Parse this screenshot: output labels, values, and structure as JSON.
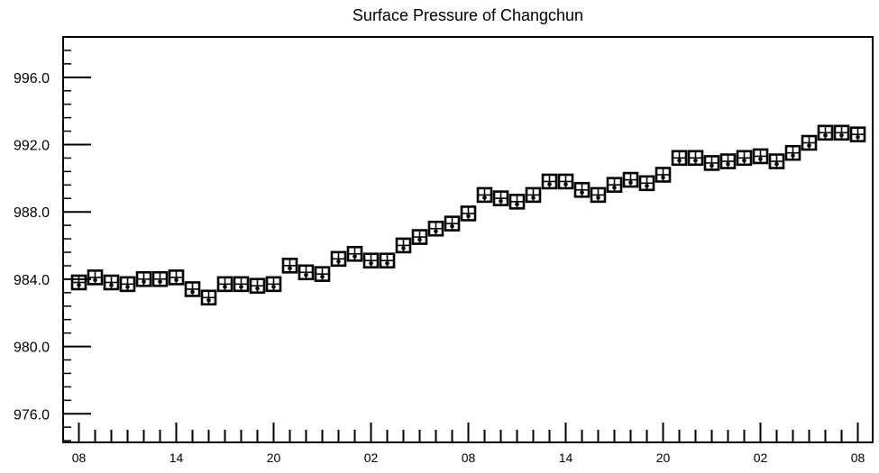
{
  "chart_data": {
    "type": "scatter",
    "title": "Surface Pressure of Changchun",
    "xlabel": "",
    "ylabel": "",
    "x_tick_labels": [
      "08",
      "14",
      "20",
      "02",
      "08",
      "14",
      "20",
      "02",
      "08"
    ],
    "x_tick_label_every": 6,
    "x_count": 49,
    "ylim": [
      974.3,
      998.4
    ],
    "y_ticks": [
      976.0,
      980.0,
      984.0,
      988.0,
      992.0,
      996.0
    ],
    "y_tick_labels": [
      "976.0",
      "980.0",
      "984.0",
      "988.0",
      "992.0",
      "996.0"
    ],
    "y_minor_step": 0.8,
    "grid": false,
    "legend": "none",
    "series": [
      {
        "marker": "boxed-cross",
        "values": [
          983.7,
          984.0,
          983.7,
          983.6,
          983.9,
          983.9,
          984.0,
          983.3,
          982.8,
          983.6,
          983.6,
          983.5,
          983.6,
          984.7,
          984.3,
          984.2,
          985.1,
          985.4,
          985.0,
          985.0,
          985.9,
          986.4,
          986.9,
          987.2,
          987.8,
          988.9,
          988.7,
          988.5,
          988.9,
          989.7,
          989.7,
          989.2,
          988.9,
          989.5,
          989.8,
          989.6,
          990.1,
          991.1,
          991.1,
          990.8,
          990.9,
          991.1,
          991.2,
          990.9,
          991.4,
          992.0,
          992.6,
          992.6,
          992.5
        ]
      }
    ]
  }
}
